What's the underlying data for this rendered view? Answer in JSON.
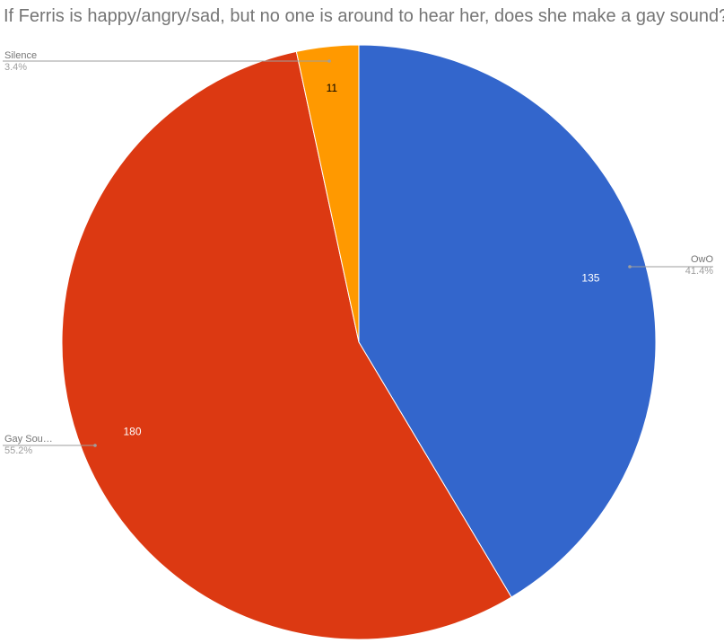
{
  "chart_data": {
    "type": "pie",
    "title": "If Ferris is happy/angry/sad, but no one is around to hear her, does she make a gay sound?",
    "slices": [
      {
        "label": "OwO",
        "value": 135,
        "percent": "41.4%",
        "color": "#3366cc",
        "label_color": "#ffffff"
      },
      {
        "label": "Gay Sou…",
        "value": 180,
        "percent": "55.2%",
        "color": "#dc3912",
        "label_color": "#ffffff"
      },
      {
        "label": "Silence",
        "value": 11,
        "percent": "3.4%",
        "color": "#ff9900",
        "label_color": "#000000"
      }
    ],
    "legend": "none",
    "label_style": "callout lines with label and percent"
  }
}
